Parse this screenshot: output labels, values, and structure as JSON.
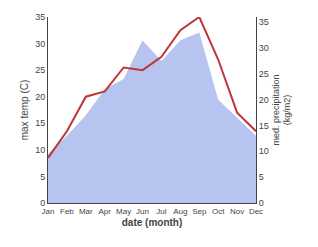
{
  "chart_data": {
    "type": "line",
    "categories": [
      "Jan",
      "Feb",
      "Mar",
      "Apr",
      "May",
      "Jun",
      "Jul",
      "Aug",
      "Sep",
      "Oct",
      "Nov",
      "Dec"
    ],
    "series": [
      {
        "type": "line",
        "color": "#c03535",
        "values": [
          8.5,
          13.5,
          20.0,
          21.0,
          25.5,
          25.0,
          27.5,
          32.5,
          35.0,
          27.0,
          17.0,
          13.5
        ]
      },
      {
        "type": "area",
        "color": "#b8c4f0",
        "axis": "y2",
        "values": [
          9.5,
          13.0,
          17.0,
          22.0,
          24.0,
          31.5,
          27.5,
          31.5,
          33.0,
          20.0,
          16.5,
          13.0
        ]
      }
    ],
    "xlabel": "date (month)",
    "ylabel": "max temp (C)",
    "y2label": "med. precipitation\n(kg/m2)",
    "ylim": [
      0,
      35
    ],
    "yticks": [
      0,
      5,
      10,
      15,
      20,
      25,
      30,
      35
    ],
    "y2lim": [
      0,
      36
    ],
    "y2ticks": [
      0,
      5,
      10,
      15,
      20,
      25,
      30,
      35
    ],
    "grid": false
  }
}
